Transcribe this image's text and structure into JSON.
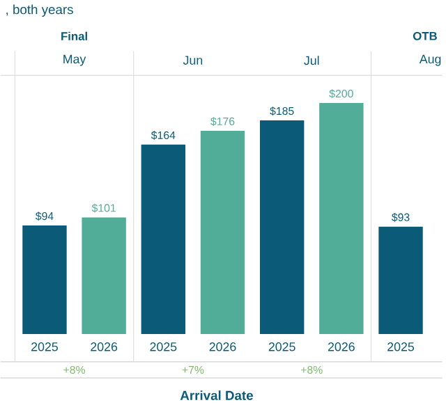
{
  "chart_data": {
    "type": "bar",
    "title": ", both years",
    "xlabel": "Arrival Date",
    "categories": [
      "2025",
      "2026",
      "2025",
      "2026",
      "2025",
      "2026",
      "2025"
    ],
    "values": [
      94,
      101,
      164,
      176,
      185,
      200,
      93
    ],
    "colors": [
      "#0b5b78",
      "#52ad98",
      "#0b5b78",
      "#52ad98",
      "#0b5b78",
      "#52ad98",
      "#0b5b78"
    ],
    "value_labels": [
      "$94",
      "$101",
      "$164",
      "$176",
      "$185",
      "$200",
      "$93"
    ],
    "annotations": [
      "Final",
      "OTB",
      "May",
      "Jun",
      "Jul",
      "Aug",
      "+8%",
      "+7%",
      "+8%"
    ]
  }
}
